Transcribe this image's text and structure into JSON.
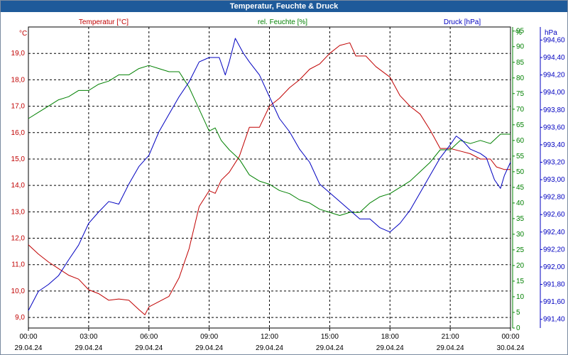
{
  "window": {
    "title": "Temperatur, Feuchte & Druck"
  },
  "chart_data": {
    "type": "line",
    "title": "Temperatur, Feuchte & Druck",
    "x_ticks": [
      {
        "time": "00:00",
        "date": "29.04.24"
      },
      {
        "time": "03:00",
        "date": "29.04.24"
      },
      {
        "time": "06:00",
        "date": "29.04.24"
      },
      {
        "time": "09:00",
        "date": "29.04.24"
      },
      {
        "time": "12:00",
        "date": "29.04.24"
      },
      {
        "time": "15:00",
        "date": "29.04.24"
      },
      {
        "time": "18:00",
        "date": "29.04.24"
      },
      {
        "time": "21:00",
        "date": "29.04.24"
      },
      {
        "time": "00:00",
        "date": "30.04.24"
      }
    ],
    "xlim": [
      0,
      24
    ],
    "grid": true,
    "axes": {
      "temperature": {
        "unit": "°C",
        "label": "Temperatur [°C]",
        "ylim": [
          8.6,
          20.0
        ],
        "ticks": [
          "9,0",
          "10,0",
          "11,0",
          "12,0",
          "13,0",
          "14,0",
          "15,0",
          "16,0",
          "17,0",
          "18,0",
          "19,0"
        ],
        "color": "#c00000"
      },
      "humidity": {
        "unit": "%",
        "label": "rel. Feuchte [%]",
        "ylim": [
          0,
          96.3
        ],
        "ticks": [
          "0",
          "5",
          "10",
          "15",
          "20",
          "25",
          "30",
          "35",
          "40",
          "45",
          "50",
          "55",
          "60",
          "65",
          "70",
          "75",
          "80",
          "85",
          "90",
          "95"
        ],
        "color": "#008000"
      },
      "pressure": {
        "unit": "hPa",
        "label": "Druck [hPa]",
        "ylim": [
          991.3,
          994.75
        ],
        "ticks": [
          "991,40",
          "991,60",
          "991,80",
          "992,00",
          "992,20",
          "992,40",
          "992,60",
          "992,80",
          "993,00",
          "993,20",
          "993,40",
          "993,60",
          "993,80",
          "994,00",
          "994,20",
          "994,40",
          "994,60"
        ],
        "color": "#0000c0"
      }
    },
    "series": [
      {
        "name": "Temperatur [°C]",
        "axis": "temperature",
        "color": "#c00000",
        "points": [
          [
            0,
            11.75
          ],
          [
            0.5,
            11.4
          ],
          [
            1,
            11.1
          ],
          [
            1.5,
            10.85
          ],
          [
            2,
            10.6
          ],
          [
            2.5,
            10.45
          ],
          [
            3,
            10.05
          ],
          [
            3.5,
            9.9
          ],
          [
            4,
            9.65
          ],
          [
            4.5,
            9.7
          ],
          [
            5,
            9.65
          ],
          [
            5.5,
            9.3
          ],
          [
            5.8,
            9.1
          ],
          [
            6,
            9.4
          ],
          [
            6.5,
            9.6
          ],
          [
            7,
            9.8
          ],
          [
            7.5,
            10.5
          ],
          [
            8,
            11.6
          ],
          [
            8.5,
            13.2
          ],
          [
            9,
            13.8
          ],
          [
            9.3,
            13.7
          ],
          [
            9.6,
            14.2
          ],
          [
            10,
            14.5
          ],
          [
            10.5,
            15.1
          ],
          [
            11,
            16.2
          ],
          [
            11.5,
            16.2
          ],
          [
            12,
            17.0
          ],
          [
            12.5,
            17.3
          ],
          [
            13,
            17.7
          ],
          [
            13.5,
            18.0
          ],
          [
            14,
            18.4
          ],
          [
            14.5,
            18.6
          ],
          [
            15,
            19.0
          ],
          [
            15.5,
            19.3
          ],
          [
            16,
            19.4
          ],
          [
            16.3,
            18.9
          ],
          [
            16.8,
            18.9
          ],
          [
            17.3,
            18.5
          ],
          [
            18,
            18.1
          ],
          [
            18.5,
            17.4
          ],
          [
            19,
            17.0
          ],
          [
            19.5,
            16.7
          ],
          [
            20,
            16.1
          ],
          [
            20.5,
            15.4
          ],
          [
            21,
            15.4
          ],
          [
            21.5,
            15.3
          ],
          [
            22,
            15.2
          ],
          [
            22.5,
            15.0
          ],
          [
            23,
            15.0
          ],
          [
            23.3,
            14.7
          ],
          [
            23.7,
            14.6
          ],
          [
            24,
            14.6
          ]
        ]
      },
      {
        "name": "rel. Feuchte [%]",
        "axis": "humidity",
        "color": "#008000",
        "points": [
          [
            0,
            67
          ],
          [
            0.5,
            69
          ],
          [
            1,
            71
          ],
          [
            1.5,
            73
          ],
          [
            2,
            74
          ],
          [
            2.5,
            76
          ],
          [
            3,
            76
          ],
          [
            3.5,
            78
          ],
          [
            4,
            79
          ],
          [
            4.5,
            81
          ],
          [
            5,
            81
          ],
          [
            5.5,
            83
          ],
          [
            6,
            84
          ],
          [
            6.5,
            83
          ],
          [
            7,
            82
          ],
          [
            7.5,
            82
          ],
          [
            8,
            77
          ],
          [
            8.5,
            70
          ],
          [
            9,
            63
          ],
          [
            9.3,
            64
          ],
          [
            9.6,
            60
          ],
          [
            10,
            57
          ],
          [
            10.5,
            54
          ],
          [
            11,
            49
          ],
          [
            11.5,
            47
          ],
          [
            12,
            46
          ],
          [
            12.5,
            44
          ],
          [
            13,
            43
          ],
          [
            13.5,
            41
          ],
          [
            14,
            40
          ],
          [
            14.5,
            38
          ],
          [
            15,
            37
          ],
          [
            15.5,
            36
          ],
          [
            16,
            37
          ],
          [
            16.5,
            37
          ],
          [
            17,
            40
          ],
          [
            17.5,
            42
          ],
          [
            18,
            43
          ],
          [
            18.5,
            45
          ],
          [
            19,
            47
          ],
          [
            19.5,
            50
          ],
          [
            20,
            53
          ],
          [
            20.5,
            57
          ],
          [
            21,
            57
          ],
          [
            21.5,
            60
          ],
          [
            22,
            59
          ],
          [
            22.5,
            60
          ],
          [
            23,
            59
          ],
          [
            23.5,
            62
          ],
          [
            24,
            62
          ]
        ]
      },
      {
        "name": "Druck [hPa]",
        "axis": "pressure",
        "color": "#0000c0",
        "points": [
          [
            0,
            991.5
          ],
          [
            0.5,
            991.72
          ],
          [
            1,
            991.8
          ],
          [
            1.5,
            991.9
          ],
          [
            2,
            992.08
          ],
          [
            2.5,
            992.25
          ],
          [
            3,
            992.5
          ],
          [
            3.5,
            992.63
          ],
          [
            4,
            992.75
          ],
          [
            4.5,
            992.72
          ],
          [
            5,
            992.95
          ],
          [
            5.5,
            993.15
          ],
          [
            6,
            993.28
          ],
          [
            6.5,
            993.55
          ],
          [
            7,
            993.75
          ],
          [
            7.5,
            993.95
          ],
          [
            8,
            994.12
          ],
          [
            8.5,
            994.35
          ],
          [
            9,
            994.4
          ],
          [
            9.5,
            994.4
          ],
          [
            9.8,
            994.2
          ],
          [
            10,
            994.35
          ],
          [
            10.3,
            994.62
          ],
          [
            10.7,
            994.45
          ],
          [
            11,
            994.35
          ],
          [
            11.5,
            994.2
          ],
          [
            12,
            993.95
          ],
          [
            12.5,
            993.7
          ],
          [
            13,
            993.55
          ],
          [
            13.5,
            993.35
          ],
          [
            14,
            993.2
          ],
          [
            14.5,
            992.95
          ],
          [
            15,
            992.85
          ],
          [
            15.5,
            992.75
          ],
          [
            16,
            992.65
          ],
          [
            16.5,
            992.55
          ],
          [
            17,
            992.55
          ],
          [
            17.5,
            992.45
          ],
          [
            18,
            992.4
          ],
          [
            18.5,
            992.5
          ],
          [
            19,
            992.65
          ],
          [
            19.5,
            992.85
          ],
          [
            20,
            993.05
          ],
          [
            20.5,
            993.25
          ],
          [
            21,
            993.4
          ],
          [
            21.3,
            993.5
          ],
          [
            21.6,
            993.45
          ],
          [
            22,
            993.35
          ],
          [
            22.5,
            993.3
          ],
          [
            22.8,
            993.25
          ],
          [
            23.2,
            993.0
          ],
          [
            23.5,
            992.9
          ],
          [
            23.7,
            993.05
          ],
          [
            24,
            993.2
          ]
        ]
      }
    ]
  }
}
